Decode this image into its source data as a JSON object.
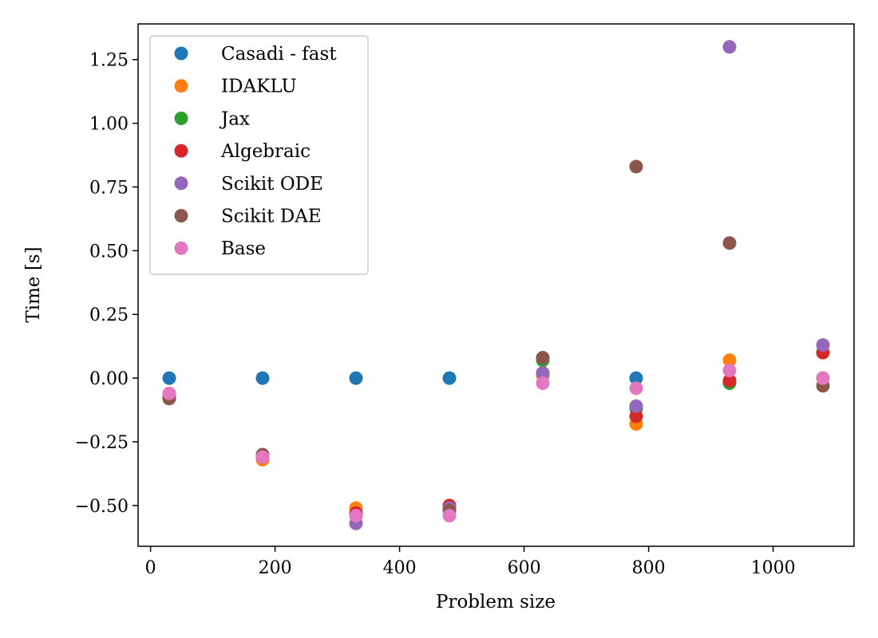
{
  "chart_data": {
    "type": "scatter",
    "title": "",
    "xlabel": "Problem size",
    "ylabel": "Time [s]",
    "xlim": [
      -20,
      1130
    ],
    "ylim": [
      -0.66,
      1.39
    ],
    "xticks": [
      0,
      200,
      400,
      600,
      800,
      1000
    ],
    "xtick_labels": [
      "0",
      "200",
      "400",
      "600",
      "800",
      "1000"
    ],
    "yticks": [
      -0.5,
      -0.25,
      0.0,
      0.25,
      0.5,
      0.75,
      1.0,
      1.25
    ],
    "ytick_labels": [
      "−0.50",
      "−0.25",
      "0.00",
      "0.25",
      "0.50",
      "0.75",
      "1.00",
      "1.25"
    ],
    "grid": false,
    "legend_position": "upper-left",
    "x": [
      30,
      180,
      330,
      480,
      630,
      780,
      930,
      1080
    ],
    "series": [
      {
        "name": "Casadi - fast",
        "color": "#1f77b4",
        "points": [
          [
            30,
            0.0
          ],
          [
            180,
            0.0
          ],
          [
            330,
            0.0
          ],
          [
            480,
            0.0
          ],
          [
            780,
            0.0
          ]
        ]
      },
      {
        "name": "IDAKLU",
        "color": "#ff7f0e",
        "points": [
          [
            30,
            -0.08
          ],
          [
            180,
            -0.32
          ],
          [
            330,
            -0.51
          ],
          [
            480,
            -0.51
          ],
          [
            630,
            0.01
          ],
          [
            780,
            -0.18
          ],
          [
            930,
            0.07
          ],
          [
            1080,
            0.0
          ]
        ]
      },
      {
        "name": "Jax",
        "color": "#2ca02c",
        "points": [
          [
            30,
            -0.08
          ],
          [
            180,
            -0.31
          ],
          [
            330,
            -0.54
          ],
          [
            480,
            -0.51
          ],
          [
            630,
            0.07
          ],
          [
            780,
            -0.12
          ],
          [
            930,
            -0.02
          ],
          [
            1080,
            0.0
          ]
        ]
      },
      {
        "name": "Algebraic",
        "color": "#d62728",
        "points": [
          [
            30,
            -0.07
          ],
          [
            180,
            -0.31
          ],
          [
            330,
            -0.53
          ],
          [
            480,
            -0.5
          ],
          [
            630,
            0.02
          ],
          [
            780,
            -0.15
          ],
          [
            930,
            -0.01
          ],
          [
            1080,
            0.1
          ]
        ]
      },
      {
        "name": "Scikit ODE",
        "color": "#9467bd",
        "points": [
          [
            30,
            -0.07
          ],
          [
            180,
            -0.31
          ],
          [
            330,
            -0.57
          ],
          [
            480,
            -0.51
          ],
          [
            630,
            0.02
          ],
          [
            780,
            -0.11
          ],
          [
            930,
            1.3
          ],
          [
            1080,
            0.13
          ]
        ]
      },
      {
        "name": "Scikit DAE",
        "color": "#8c564b",
        "points": [
          [
            30,
            -0.08
          ],
          [
            180,
            -0.3
          ],
          [
            330,
            -0.54
          ],
          [
            480,
            -0.52
          ],
          [
            630,
            0.08
          ],
          [
            780,
            0.83
          ],
          [
            930,
            0.53
          ],
          [
            1080,
            -0.03
          ]
        ]
      },
      {
        "name": "Base",
        "color": "#e377c2",
        "points": [
          [
            30,
            -0.06
          ],
          [
            180,
            -0.31
          ],
          [
            330,
            -0.54
          ],
          [
            480,
            -0.54
          ],
          [
            630,
            -0.02
          ],
          [
            780,
            -0.04
          ],
          [
            930,
            0.03
          ],
          [
            1080,
            0.0
          ]
        ]
      }
    ]
  }
}
